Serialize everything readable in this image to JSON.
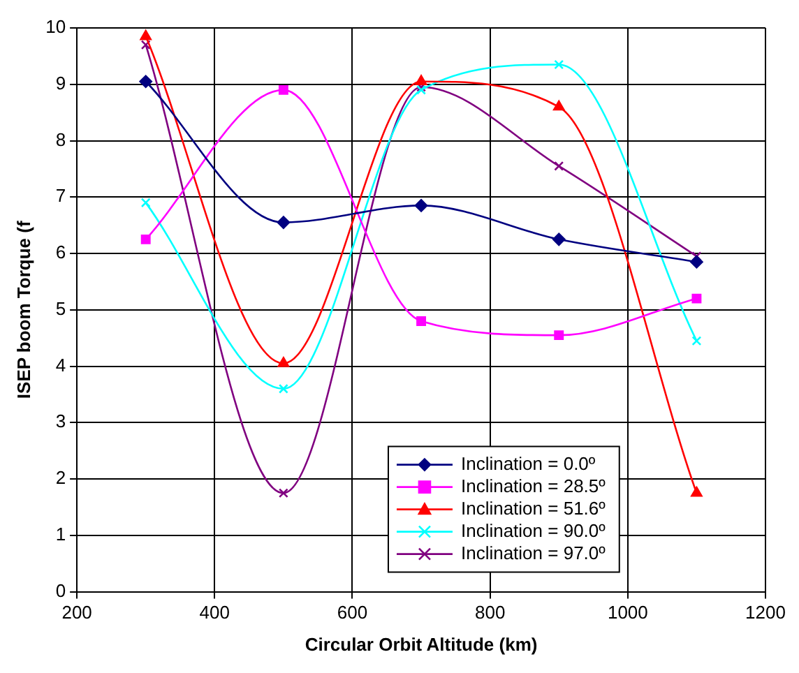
{
  "chart_data": {
    "type": "line",
    "xlabel": "Circular Orbit Altitude (km)",
    "ylabel": "ISEP boom Torque (f",
    "x": [
      300,
      500,
      700,
      900,
      1100
    ],
    "series": [
      {
        "name": "Inclination = 0.0º",
        "color": "#000080",
        "marker": "diamond",
        "values": [
          9.05,
          6.55,
          6.85,
          6.25,
          5.85
        ]
      },
      {
        "name": "Inclination = 28.5º",
        "color": "#ff00ff",
        "marker": "square",
        "values": [
          6.25,
          8.9,
          4.8,
          4.55,
          5.2
        ]
      },
      {
        "name": "Inclination = 51.6º",
        "color": "#ff0000",
        "marker": "triangle",
        "values": [
          9.85,
          4.05,
          9.05,
          8.6,
          1.75
        ]
      },
      {
        "name": "Inclination = 90.0º",
        "color": "#00ffff",
        "marker": "cross",
        "values": [
          6.9,
          3.6,
          8.9,
          9.35,
          4.45
        ]
      },
      {
        "name": "Inclination = 97.0º",
        "color": "#800080",
        "marker": "cross",
        "values": [
          9.7,
          1.75,
          8.95,
          7.55,
          5.95
        ]
      }
    ],
    "xlim": [
      200,
      1200
    ],
    "xticks": [
      200,
      400,
      600,
      800,
      1000,
      1200
    ],
    "ylim": [
      0,
      10
    ],
    "yticks": [
      0,
      1,
      2,
      3,
      4,
      5,
      6,
      7,
      8,
      9,
      10
    ],
    "grid": true,
    "legend": "bottom"
  }
}
